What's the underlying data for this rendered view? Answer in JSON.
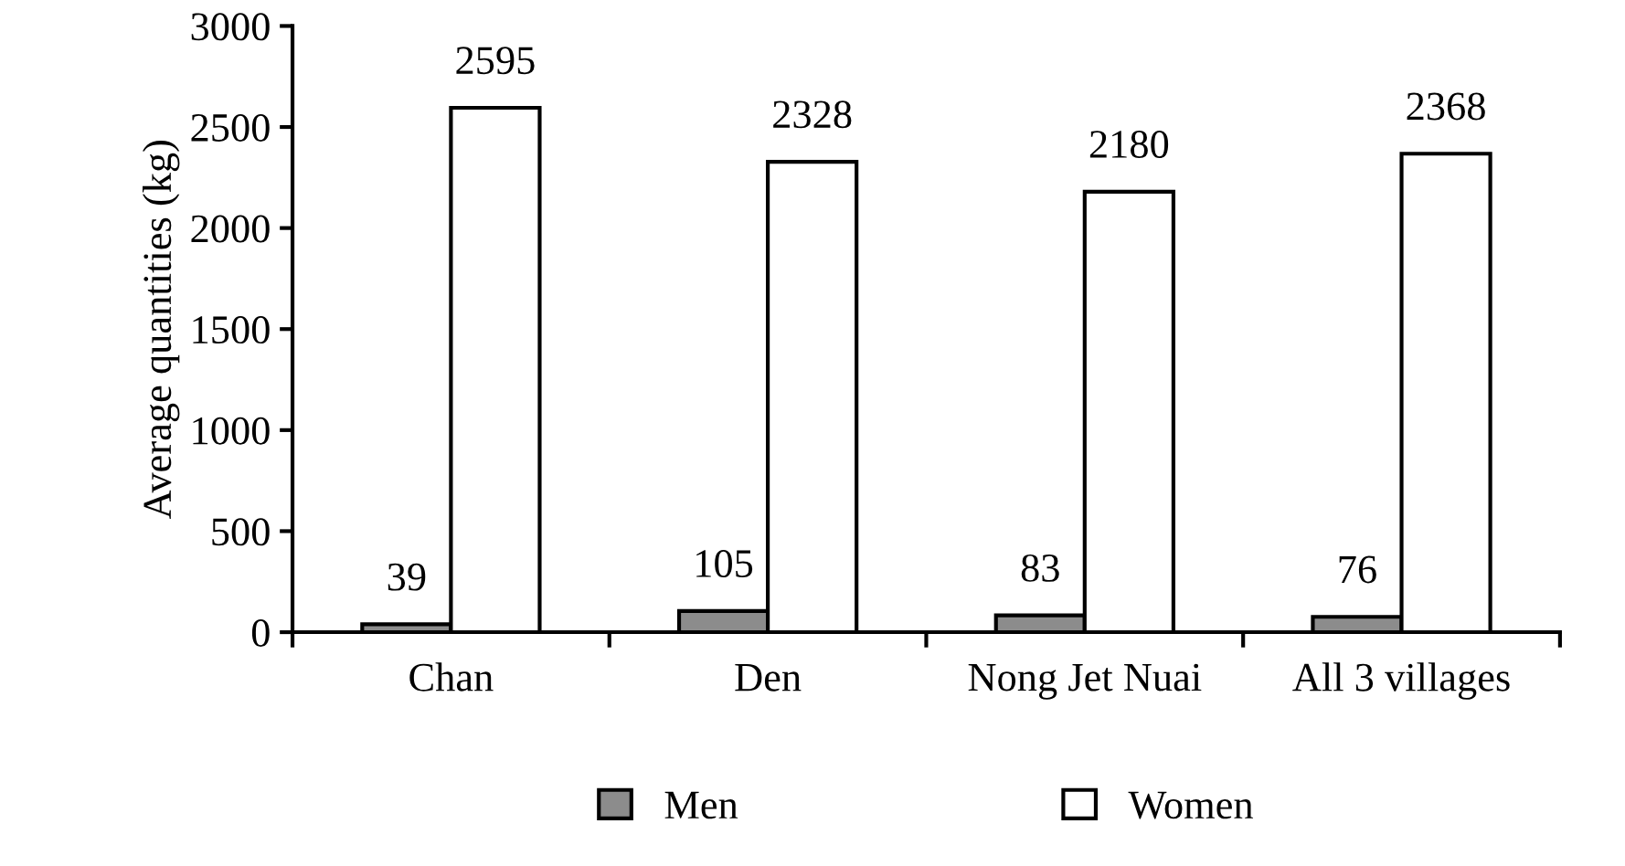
{
  "chart_data": {
    "type": "bar",
    "ylabel": "Average quantities (kg)",
    "categories": [
      "Chan",
      "Den",
      "Nong Jet Nuai",
      "All 3 villages"
    ],
    "series": [
      {
        "name": "Men",
        "color": "#8c8c8c",
        "values": [
          39,
          105,
          83,
          76
        ]
      },
      {
        "name": "Women",
        "color": "#ffffff",
        "values": [
          2595,
          2328,
          2180,
          2368
        ]
      }
    ],
    "ylim": [
      0,
      3000
    ],
    "yticks": [
      0,
      500,
      1000,
      1500,
      2000,
      2500,
      3000
    ],
    "data_labels": true,
    "grid": false,
    "legend": "bottom"
  }
}
